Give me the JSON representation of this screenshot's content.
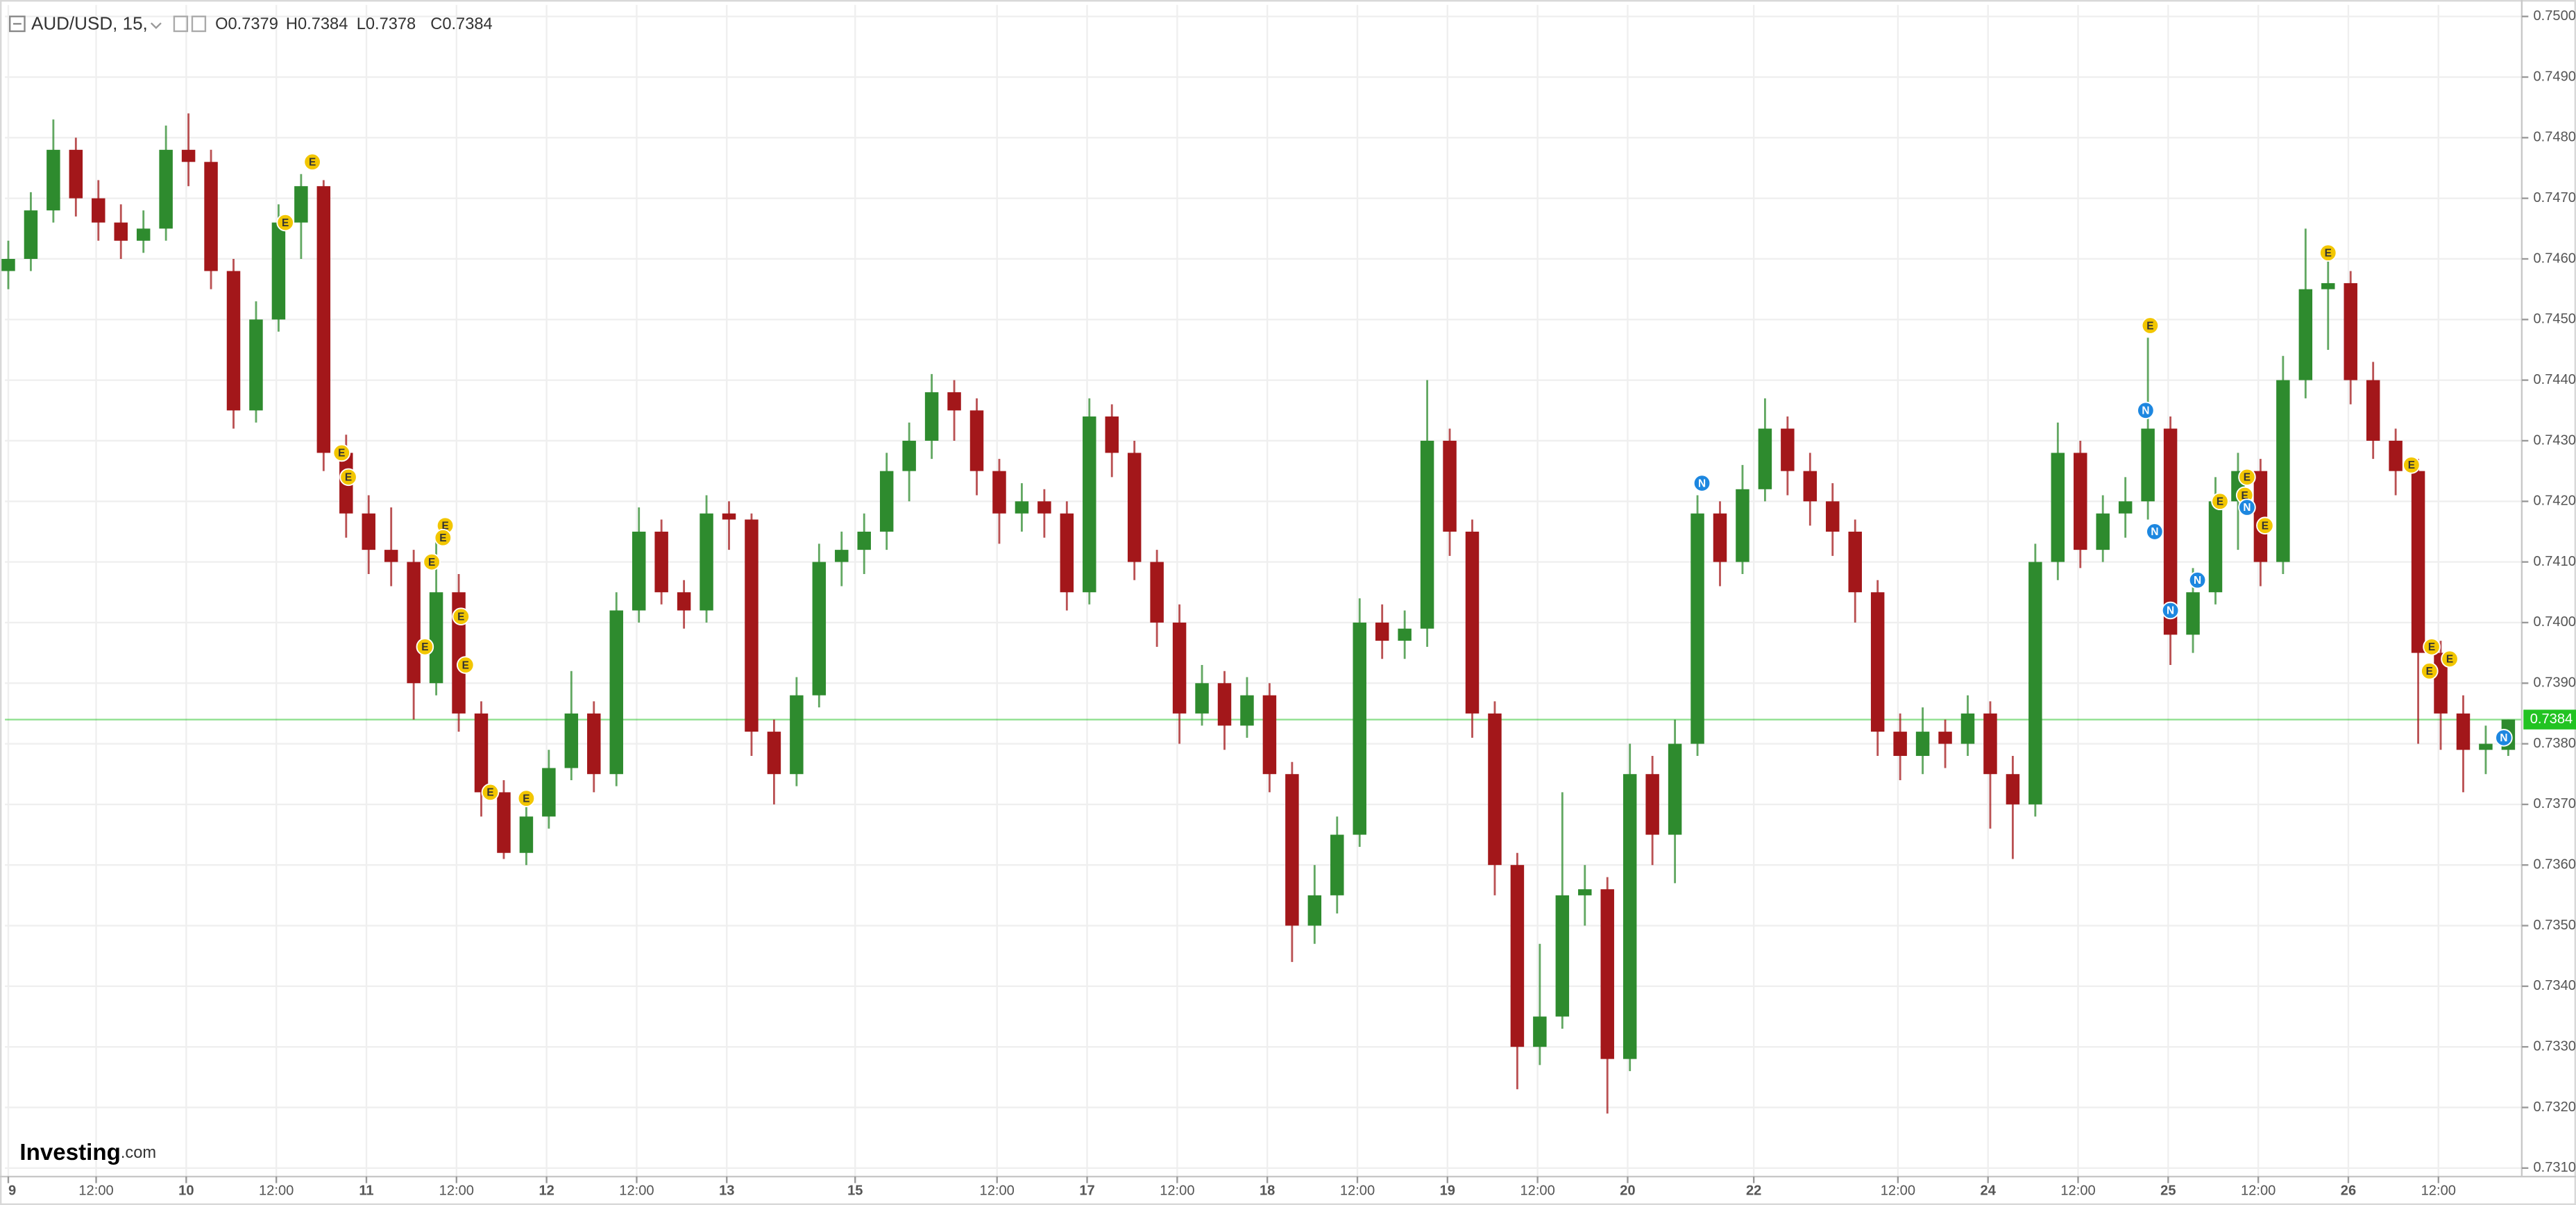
{
  "chart_data": {
    "type": "candlestick",
    "symbol": "AUD/USD, 15,",
    "header_labels": [
      "O0.7379",
      "H0.7384",
      "L0.7378",
      "C0.7384"
    ],
    "logo": "Investing",
    "logo_suffix": ".com",
    "up_color": "#2e8b2e",
    "down_color": "#a3171a",
    "grid": true,
    "xlim": [
      -0.15,
      111.6
    ],
    "ylim": [
      0.73086,
      0.75019
    ],
    "xticks": [
      {
        "value": 0,
        "label": "9"
      },
      {
        "value": 3.9,
        "label": "12:00"
      },
      {
        "value": 7.9,
        "label": "10"
      },
      {
        "value": 11.9,
        "label": "12:00"
      },
      {
        "value": 15.9,
        "label": "11"
      },
      {
        "value": 19.9,
        "label": "12:00"
      },
      {
        "value": 23.9,
        "label": "12"
      },
      {
        "value": 27.9,
        "label": "12:00"
      },
      {
        "value": 31.9,
        "label": "13"
      },
      {
        "value": 37.6,
        "label": "15"
      },
      {
        "value": 43.9,
        "label": "12:00"
      },
      {
        "value": 47.9,
        "label": "17"
      },
      {
        "value": 51.9,
        "label": "12:00"
      },
      {
        "value": 55.9,
        "label": "18"
      },
      {
        "value": 59.9,
        "label": "12:00"
      },
      {
        "value": 63.9,
        "label": "19"
      },
      {
        "value": 67.9,
        "label": "12:00"
      },
      {
        "value": 71.9,
        "label": "20"
      },
      {
        "value": 77.5,
        "label": "22"
      },
      {
        "value": 83.9,
        "label": "12:00"
      },
      {
        "value": 87.9,
        "label": "24"
      },
      {
        "value": 91.9,
        "label": "12:00"
      },
      {
        "value": 95.9,
        "label": "25"
      },
      {
        "value": 99.9,
        "label": "12:00"
      },
      {
        "value": 103.9,
        "label": "26"
      },
      {
        "value": 107.9,
        "label": "12:00"
      }
    ],
    "yticks": [
      {
        "value": 0.731,
        "label": "0.7310"
      },
      {
        "value": 0.732,
        "label": "0.7320"
      },
      {
        "value": 0.733,
        "label": "0.7330"
      },
      {
        "value": 0.734,
        "label": "0.7340"
      },
      {
        "value": 0.735,
        "label": "0.7350"
      },
      {
        "value": 0.736,
        "label": "0.7360"
      },
      {
        "value": 0.737,
        "label": "0.7370"
      },
      {
        "value": 0.738,
        "label": "0.7380"
      },
      {
        "value": 0.739,
        "label": "0.7390"
      },
      {
        "value": 0.74,
        "label": "0.7400"
      },
      {
        "value": 0.741,
        "label": "0.7410"
      },
      {
        "value": 0.742,
        "label": "0.7420"
      },
      {
        "value": 0.743,
        "label": "0.7430"
      },
      {
        "value": 0.744,
        "label": "0.7440"
      },
      {
        "value": 0.745,
        "label": "0.7450"
      },
      {
        "value": 0.746,
        "label": "0.7460"
      },
      {
        "value": 0.747,
        "label": "0.7470"
      },
      {
        "value": 0.748,
        "label": "0.7480"
      },
      {
        "value": 0.749,
        "label": "0.7490"
      },
      {
        "value": 0.75,
        "label": "0.7500"
      }
    ],
    "last_price": 0.7384,
    "last_price_color": "#22c322",
    "ohlc": [
      [
        0.7458,
        0.7463,
        0.7455,
        0.746
      ],
      [
        0.746,
        0.7471,
        0.7458,
        0.7468
      ],
      [
        0.7468,
        0.7483,
        0.7466,
        0.7478
      ],
      [
        0.7478,
        0.748,
        0.7467,
        0.747
      ],
      [
        0.747,
        0.7473,
        0.7463,
        0.7466
      ],
      [
        0.7466,
        0.7469,
        0.746,
        0.7463
      ],
      [
        0.7463,
        0.7468,
        0.7461,
        0.7465
      ],
      [
        0.7465,
        0.7482,
        0.7463,
        0.7478
      ],
      [
        0.7478,
        0.7484,
        0.7472,
        0.7476
      ],
      [
        0.7476,
        0.7478,
        0.7455,
        0.7458
      ],
      [
        0.7458,
        0.746,
        0.7432,
        0.7435
      ],
      [
        0.7435,
        0.7453,
        0.7433,
        0.745
      ],
      [
        0.745,
        0.7469,
        0.7448,
        0.7466
      ],
      [
        0.7466,
        0.7474,
        0.746,
        0.7472
      ],
      [
        0.7472,
        0.7473,
        0.7425,
        0.7428
      ],
      [
        0.7428,
        0.7431,
        0.7414,
        0.7418
      ],
      [
        0.7418,
        0.7421,
        0.7408,
        0.7412
      ],
      [
        0.7412,
        0.7419,
        0.7406,
        0.741
      ],
      [
        0.741,
        0.7412,
        0.7384,
        0.739
      ],
      [
        0.739,
        0.7414,
        0.7388,
        0.7405
      ],
      [
        0.7405,
        0.7408,
        0.7382,
        0.7385
      ],
      [
        0.7385,
        0.7387,
        0.7368,
        0.7372
      ],
      [
        0.7372,
        0.7374,
        0.7361,
        0.7362
      ],
      [
        0.7362,
        0.737,
        0.736,
        0.7368
      ],
      [
        0.7368,
        0.7379,
        0.7366,
        0.7376
      ],
      [
        0.7376,
        0.7392,
        0.7374,
        0.7385
      ],
      [
        0.7385,
        0.7387,
        0.7372,
        0.7375
      ],
      [
        0.7375,
        0.7405,
        0.7373,
        0.7402
      ],
      [
        0.7402,
        0.7419,
        0.74,
        0.7415
      ],
      [
        0.7415,
        0.7417,
        0.7403,
        0.7405
      ],
      [
        0.7405,
        0.7407,
        0.7399,
        0.7402
      ],
      [
        0.7402,
        0.7421,
        0.74,
        0.7418
      ],
      [
        0.7418,
        0.742,
        0.7412,
        0.7417
      ],
      [
        0.7417,
        0.7418,
        0.7378,
        0.7382
      ],
      [
        0.7382,
        0.7384,
        0.737,
        0.7375
      ],
      [
        0.7375,
        0.7391,
        0.7373,
        0.7388
      ],
      [
        0.7388,
        0.7413,
        0.7386,
        0.741
      ],
      [
        0.741,
        0.7415,
        0.7406,
        0.7412
      ],
      [
        0.7412,
        0.7418,
        0.7408,
        0.7415
      ],
      [
        0.7415,
        0.7428,
        0.7412,
        0.7425
      ],
      [
        0.7425,
        0.7433,
        0.742,
        0.743
      ],
      [
        0.743,
        0.7441,
        0.7427,
        0.7438
      ],
      [
        0.7438,
        0.744,
        0.743,
        0.7435
      ],
      [
        0.7435,
        0.7437,
        0.7421,
        0.7425
      ],
      [
        0.7425,
        0.7427,
        0.7413,
        0.7418
      ],
      [
        0.7418,
        0.7423,
        0.7415,
        0.742
      ],
      [
        0.742,
        0.7422,
        0.7414,
        0.7418
      ],
      [
        0.7418,
        0.742,
        0.7402,
        0.7405
      ],
      [
        0.7405,
        0.7437,
        0.7403,
        0.7434
      ],
      [
        0.7434,
        0.7436,
        0.7424,
        0.7428
      ],
      [
        0.7428,
        0.743,
        0.7407,
        0.741
      ],
      [
        0.741,
        0.7412,
        0.7396,
        0.74
      ],
      [
        0.74,
        0.7403,
        0.738,
        0.7385
      ],
      [
        0.7385,
        0.7393,
        0.7383,
        0.739
      ],
      [
        0.739,
        0.7392,
        0.7379,
        0.7383
      ],
      [
        0.7383,
        0.7391,
        0.7381,
        0.7388
      ],
      [
        0.7388,
        0.739,
        0.7372,
        0.7375
      ],
      [
        0.7375,
        0.7377,
        0.7344,
        0.735
      ],
      [
        0.735,
        0.736,
        0.7347,
        0.7355
      ],
      [
        0.7355,
        0.7368,
        0.7352,
        0.7365
      ],
      [
        0.7365,
        0.7404,
        0.7363,
        0.74
      ],
      [
        0.74,
        0.7403,
        0.7394,
        0.7397
      ],
      [
        0.7397,
        0.7402,
        0.7394,
        0.7399
      ],
      [
        0.7399,
        0.744,
        0.7396,
        0.743
      ],
      [
        0.743,
        0.7432,
        0.7411,
        0.7415
      ],
      [
        0.7415,
        0.7417,
        0.7381,
        0.7385
      ],
      [
        0.7385,
        0.7387,
        0.7355,
        0.736
      ],
      [
        0.736,
        0.7362,
        0.7323,
        0.733
      ],
      [
        0.733,
        0.7347,
        0.7327,
        0.7335
      ],
      [
        0.7335,
        0.7372,
        0.7333,
        0.7355
      ],
      [
        0.7355,
        0.736,
        0.735,
        0.7356
      ],
      [
        0.7356,
        0.7358,
        0.7319,
        0.7328
      ],
      [
        0.7328,
        0.738,
        0.7326,
        0.7375
      ],
      [
        0.7375,
        0.7378,
        0.736,
        0.7365
      ],
      [
        0.7365,
        0.7384,
        0.7357,
        0.738
      ],
      [
        0.738,
        0.7421,
        0.7378,
        0.7418
      ],
      [
        0.7418,
        0.742,
        0.7406,
        0.741
      ],
      [
        0.741,
        0.7426,
        0.7408,
        0.7422
      ],
      [
        0.7422,
        0.7437,
        0.742,
        0.7432
      ],
      [
        0.7432,
        0.7434,
        0.7421,
        0.7425
      ],
      [
        0.7425,
        0.7428,
        0.7416,
        0.742
      ],
      [
        0.742,
        0.7423,
        0.7411,
        0.7415
      ],
      [
        0.7415,
        0.7417,
        0.74,
        0.7405
      ],
      [
        0.7405,
        0.7407,
        0.7378,
        0.7382
      ],
      [
        0.7382,
        0.7385,
        0.7374,
        0.7378
      ],
      [
        0.7378,
        0.7386,
        0.7375,
        0.7382
      ],
      [
        0.7382,
        0.7384,
        0.7376,
        0.738
      ],
      [
        0.738,
        0.7388,
        0.7378,
        0.7385
      ],
      [
        0.7385,
        0.7387,
        0.7366,
        0.7375
      ],
      [
        0.7375,
        0.7378,
        0.7361,
        0.737
      ],
      [
        0.737,
        0.7413,
        0.7368,
        0.741
      ],
      [
        0.741,
        0.7433,
        0.7407,
        0.7428
      ],
      [
        0.7428,
        0.743,
        0.7409,
        0.7412
      ],
      [
        0.7412,
        0.7421,
        0.741,
        0.7418
      ],
      [
        0.7418,
        0.7424,
        0.7414,
        0.742
      ],
      [
        0.742,
        0.7447,
        0.7417,
        0.7432
      ],
      [
        0.7432,
        0.7434,
        0.7393,
        0.7398
      ],
      [
        0.7398,
        0.7409,
        0.7395,
        0.7405
      ],
      [
        0.7405,
        0.7424,
        0.7403,
        0.742
      ],
      [
        0.742,
        0.7428,
        0.7412,
        0.7425
      ],
      [
        0.7425,
        0.7427,
        0.7406,
        0.741
      ],
      [
        0.741,
        0.7444,
        0.7408,
        0.744
      ],
      [
        0.744,
        0.7465,
        0.7437,
        0.7455
      ],
      [
        0.7455,
        0.7462,
        0.7445,
        0.7456
      ],
      [
        0.7456,
        0.7458,
        0.7436,
        0.744
      ],
      [
        0.744,
        0.7443,
        0.7427,
        0.743
      ],
      [
        0.743,
        0.7432,
        0.7421,
        0.7425
      ],
      [
        0.7425,
        0.7427,
        0.738,
        0.7395
      ],
      [
        0.7395,
        0.7397,
        0.7379,
        0.7385
      ],
      [
        0.7385,
        0.7388,
        0.7372,
        0.7379
      ],
      [
        0.7379,
        0.7383,
        0.7375,
        0.738
      ],
      [
        0.7379,
        0.7384,
        0.7378,
        0.7384
      ]
    ],
    "event_colors": {
      "E": "#f2c600",
      "N": "#1d87e0"
    },
    "events": [
      {
        "label": "E",
        "x": 13.5,
        "y": 0.7476
      },
      {
        "label": "E",
        "x": 12.3,
        "y": 0.7466
      },
      {
        "label": "E",
        "x": 14.8,
        "y": 0.7428
      },
      {
        "label": "E",
        "x": 15.1,
        "y": 0.7424
      },
      {
        "label": "E",
        "x": 19.4,
        "y": 0.7416
      },
      {
        "label": "E",
        "x": 19.3,
        "y": 0.7414
      },
      {
        "label": "E",
        "x": 18.8,
        "y": 0.741
      },
      {
        "label": "E",
        "x": 20.1,
        "y": 0.7401
      },
      {
        "label": "E",
        "x": 18.5,
        "y": 0.7396
      },
      {
        "label": "E",
        "x": 20.3,
        "y": 0.7393
      },
      {
        "label": "E",
        "x": 21.4,
        "y": 0.7372
      },
      {
        "label": "E",
        "x": 23.0,
        "y": 0.7371
      },
      {
        "label": "N",
        "x": 75.2,
        "y": 0.7423
      },
      {
        "label": "E",
        "x": 95.1,
        "y": 0.7449
      },
      {
        "label": "N",
        "x": 94.9,
        "y": 0.7435
      },
      {
        "label": "N",
        "x": 95.3,
        "y": 0.7415
      },
      {
        "label": "N",
        "x": 96.0,
        "y": 0.7402
      },
      {
        "label": "N",
        "x": 97.2,
        "y": 0.7407
      },
      {
        "label": "E",
        "x": 98.2,
        "y": 0.742
      },
      {
        "label": "E",
        "x": 99.4,
        "y": 0.7424
      },
      {
        "label": "E",
        "x": 99.3,
        "y": 0.7421
      },
      {
        "label": "N",
        "x": 99.4,
        "y": 0.7419
      },
      {
        "label": "E",
        "x": 100.2,
        "y": 0.7416
      },
      {
        "label": "E",
        "x": 103.0,
        "y": 0.7461
      },
      {
        "label": "E",
        "x": 106.7,
        "y": 0.7426
      },
      {
        "label": "E",
        "x": 107.6,
        "y": 0.7396
      },
      {
        "label": "E",
        "x": 107.5,
        "y": 0.7392
      },
      {
        "label": "E",
        "x": 108.4,
        "y": 0.7394
      },
      {
        "label": "N",
        "x": 110.8,
        "y": 0.7381
      }
    ]
  }
}
